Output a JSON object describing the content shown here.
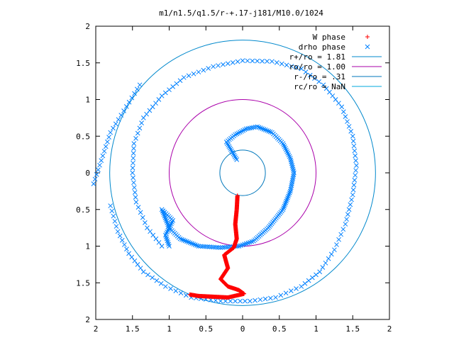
{
  "chart_data": {
    "type": "scatter",
    "title": "m1/n1.5/q1.5/r-+.17-j181/M10.0/1024",
    "xlabel": "",
    "ylabel": "",
    "xlim": [
      -2,
      2
    ],
    "ylim": [
      -2,
      2
    ],
    "x_ticks": [
      -2,
      -1.5,
      -1,
      -0.5,
      0,
      0.5,
      1,
      1.5,
      2
    ],
    "y_ticks": [
      -2,
      -1.5,
      -1,
      -0.5,
      0,
      0.5,
      1,
      1.5,
      2
    ],
    "x_tick_labels": [
      "2",
      "1.5",
      "1",
      "0.5",
      "0",
      "0.5",
      "1",
      "1.5",
      "2"
    ],
    "y_tick_labels": [
      "2",
      "1.5",
      "1",
      "0.5",
      "0",
      "0.5",
      "1",
      "1.5",
      "2"
    ],
    "grid": false,
    "legend_position": "top-right",
    "legend": [
      {
        "label": "W phase",
        "marker": "plus",
        "color": "#ff0000"
      },
      {
        "label": "drho phase",
        "marker": "cross",
        "color": "#0080ff"
      },
      {
        "label": "r+/ro = 1.81",
        "marker": "line",
        "color": "#0088cc"
      },
      {
        "label": "ro/ro = 1.00",
        "marker": "line",
        "color": "#aa00aa"
      },
      {
        "label": "r-/ro = .31",
        "marker": "line",
        "color": "#0077bb"
      },
      {
        "label": "rc/ro = NaN",
        "marker": "line",
        "color": "#00aadd"
      }
    ],
    "circles": [
      {
        "name": "r+/ro",
        "radius": 1.81,
        "color": "#0088cc"
      },
      {
        "name": "ro/ro",
        "radius": 1.0,
        "color": "#aa00aa"
      },
      {
        "name": "r-/ro",
        "radius": 0.31,
        "color": "#0077bb"
      }
    ],
    "w_phase_path": [
      [
        -0.07,
        -0.31
      ],
      [
        -0.08,
        -0.5
      ],
      [
        -0.1,
        -0.7
      ],
      [
        -0.08,
        -0.9
      ],
      [
        -0.12,
        -1.02
      ],
      [
        -0.25,
        -1.12
      ],
      [
        -0.2,
        -1.3
      ],
      [
        -0.3,
        -1.45
      ],
      [
        -0.2,
        -1.55
      ],
      [
        -0.05,
        -1.6
      ],
      [
        0.02,
        -1.65
      ],
      [
        -0.2,
        -1.7
      ],
      [
        -0.4,
        -1.69
      ],
      [
        -0.6,
        -1.68
      ],
      [
        -0.72,
        -1.66
      ]
    ],
    "drho_paths": [
      [
        [
          -0.08,
          0.18
        ],
        [
          -0.15,
          0.3
        ],
        [
          -0.22,
          0.42
        ],
        [
          -0.1,
          0.52
        ],
        [
          0.05,
          0.6
        ],
        [
          0.2,
          0.63
        ],
        [
          0.4,
          0.55
        ],
        [
          0.55,
          0.4
        ],
        [
          0.65,
          0.2
        ],
        [
          0.7,
          0.0
        ],
        [
          0.65,
          -0.25
        ],
        [
          0.55,
          -0.5
        ],
        [
          0.35,
          -0.75
        ],
        [
          0.15,
          -0.93
        ],
        [
          -0.05,
          -1.0
        ],
        [
          -0.3,
          -1.02
        ],
        [
          -0.6,
          -1.0
        ],
        [
          -0.85,
          -0.9
        ],
        [
          -1.0,
          -0.75
        ],
        [
          -1.1,
          -0.5
        ],
        [
          -0.95,
          -0.65
        ],
        [
          -1.05,
          -0.85
        ],
        [
          -1.0,
          -1.0
        ]
      ],
      [
        [
          -1.8,
          -0.45
        ],
        [
          -1.7,
          -0.8
        ],
        [
          -1.55,
          -1.1
        ],
        [
          -1.35,
          -1.35
        ],
        [
          -1.05,
          -1.55
        ],
        [
          -0.7,
          -1.7
        ],
        [
          -0.3,
          -1.75
        ],
        [
          0.1,
          -1.75
        ],
        [
          0.45,
          -1.7
        ],
        [
          0.8,
          -1.55
        ],
        [
          1.05,
          -1.35
        ],
        [
          1.25,
          -1.05
        ],
        [
          1.4,
          -0.7
        ],
        [
          1.5,
          -0.3
        ],
        [
          1.55,
          0.1
        ],
        [
          1.5,
          0.5
        ],
        [
          1.35,
          0.9
        ],
        [
          1.1,
          1.2
        ],
        [
          0.8,
          1.42
        ],
        [
          0.4,
          1.52
        ],
        [
          0.0,
          1.53
        ],
        [
          -0.4,
          1.45
        ],
        [
          -0.8,
          1.3
        ],
        [
          -1.1,
          1.05
        ],
        [
          -1.35,
          0.75
        ],
        [
          -1.48,
          0.4
        ],
        [
          -1.5,
          0.0
        ],
        [
          -1.45,
          -0.4
        ],
        [
          -1.3,
          -0.75
        ],
        [
          -1.1,
          -1.0
        ]
      ],
      [
        [
          -2.03,
          -0.15
        ],
        [
          -1.8,
          0.55
        ],
        [
          -1.4,
          1.2
        ]
      ]
    ]
  }
}
